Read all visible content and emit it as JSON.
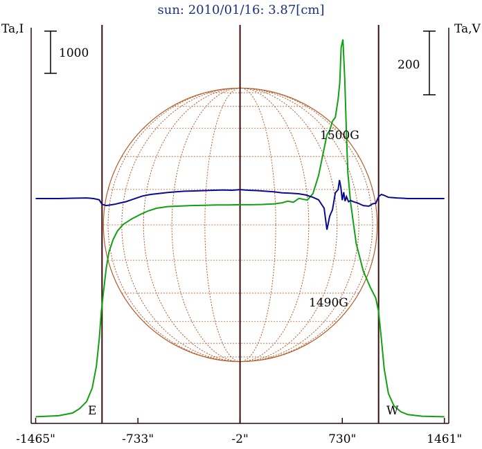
{
  "chart_data": {
    "type": "line",
    "title": "sun: 2010/01/16: 3.87[cm]",
    "left_axis_label": "Ta,I",
    "right_axis_label": "Ta,V",
    "left_scale_bar_label": "1000",
    "right_scale_bar_label": "200",
    "x_ticks": [
      "-1465\"",
      "-733\"",
      "-2\"",
      "730\"",
      "1461\""
    ],
    "x_tick_values": [
      -1465,
      -733,
      -2,
      730,
      1461
    ],
    "xlim": [
      -1465,
      1461
    ],
    "limb_markers": [
      {
        "label": "E",
        "x": -990
      },
      {
        "label": "W",
        "x": 990
      }
    ],
    "center_line_x": -2,
    "solar_disk_radius_arcsec": 980,
    "annotations": [
      "1500G",
      "1490G"
    ],
    "colors": {
      "intensity": "#10a010",
      "polarization": "#0a0a90",
      "disk_grid": "#b45a28",
      "vertical_lines": "#3a0c0c",
      "title": "#1c2f7a"
    },
    "series": [
      {
        "name": "I",
        "axis": "left",
        "x": [
          -1465,
          -1300,
          -1200,
          -1150,
          -1100,
          -1060,
          -1030,
          -1010,
          -995,
          -980,
          -960,
          -940,
          -910,
          -880,
          -840,
          -780,
          -720,
          -660,
          -600,
          -520,
          -440,
          -350,
          -260,
          -170,
          -80,
          -2,
          80,
          160,
          240,
          300,
          340,
          380,
          420,
          480,
          520,
          560,
          590,
          620,
          640,
          660,
          680,
          700,
          712,
          722,
          735,
          748,
          760,
          770,
          790,
          830,
          880,
          930,
          970,
          990,
          1010,
          1030,
          1060,
          1100,
          1150,
          1200,
          1300,
          1461
        ],
        "y": [
          20,
          40,
          90,
          170,
          300,
          550,
          950,
          1450,
          1950,
          2300,
          2750,
          3050,
          3280,
          3430,
          3550,
          3650,
          3730,
          3800,
          3850,
          3880,
          3890,
          3900,
          3905,
          3910,
          3910,
          3915,
          3915,
          3920,
          3930,
          3950,
          3980,
          3960,
          4030,
          4000,
          4120,
          4450,
          4820,
          5200,
          5280,
          5450,
          5520,
          5850,
          6150,
          6800,
          6950,
          6200,
          5200,
          4500,
          3950,
          3200,
          2700,
          2400,
          2200,
          1950,
          1450,
          900,
          450,
          220,
          110,
          60,
          30,
          20
        ]
      },
      {
        "name": "V",
        "axis": "right",
        "x": [
          -1465,
          -1300,
          -1200,
          -1100,
          -1050,
          -1010,
          -990,
          -960,
          -930,
          -900,
          -860,
          -820,
          -780,
          -740,
          -700,
          -640,
          -580,
          -520,
          -460,
          -400,
          -330,
          -260,
          -190,
          -120,
          -60,
          -2,
          60,
          120,
          180,
          240,
          300,
          360,
          420,
          470,
          520,
          560,
          600,
          620,
          640,
          660,
          680,
          700,
          710,
          720,
          730,
          740,
          750,
          760,
          775,
          790,
          810,
          840,
          880,
          920,
          950,
          970,
          990,
          1010,
          1030,
          1060,
          1090,
          1120,
          1160,
          1200,
          1300,
          1461
        ],
        "y": [
          0,
          0,
          1,
          2,
          0,
          -4,
          -18,
          -22,
          -20,
          -18,
          -14,
          -10,
          -4,
          2,
          8,
          13,
          16,
          19,
          21,
          23,
          24,
          25,
          26,
          27,
          26,
          28,
          26,
          25,
          23,
          21,
          18,
          17,
          15,
          11,
          4,
          -4,
          -30,
          -98,
          -55,
          -35,
          18,
          28,
          58,
          35,
          -5,
          20,
          -8,
          6,
          -10,
          -6,
          -10,
          -14,
          -22,
          -24,
          -16,
          -15,
          6,
          13,
          10,
          4,
          3,
          2,
          1,
          0,
          0,
          0
        ]
      }
    ]
  }
}
